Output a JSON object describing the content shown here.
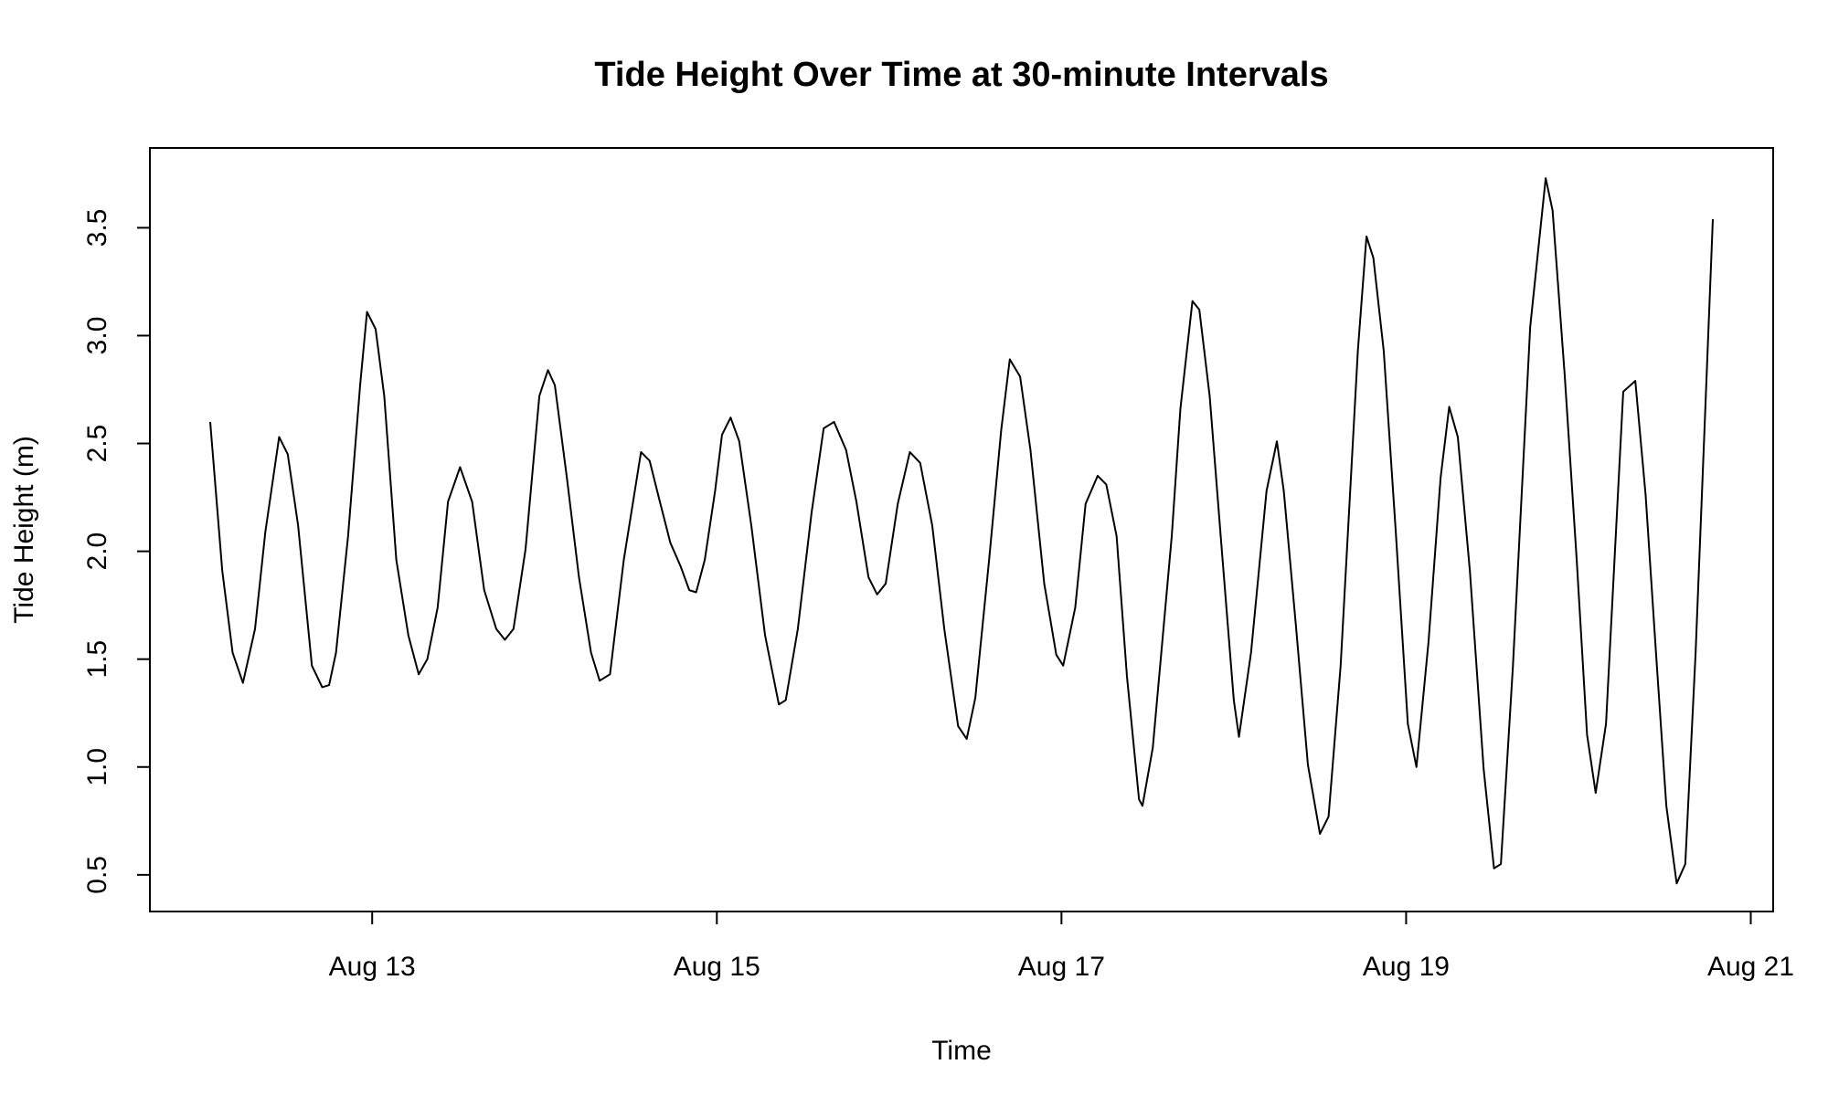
{
  "chart_data": {
    "type": "line",
    "title": "Tide Height Over Time at 30-minute Intervals",
    "x_label": "Time",
    "y_label": "Tide Height (m)",
    "color": "#000000",
    "grid": false,
    "x": [
      12.06,
      12.13,
      12.19,
      12.25,
      12.32,
      12.38,
      12.46,
      12.51,
      12.57,
      12.65,
      12.71,
      12.75,
      12.79,
      12.86,
      12.93,
      12.97,
      13.02,
      13.07,
      13.14,
      13.21,
      13.27,
      13.32,
      13.38,
      13.44,
      13.51,
      13.58,
      13.65,
      13.72,
      13.77,
      13.82,
      13.89,
      13.97,
      14.02,
      14.06,
      14.13,
      14.2,
      14.27,
      14.32,
      14.38,
      14.46,
      14.56,
      14.61,
      14.66,
      14.73,
      14.79,
      14.84,
      14.88,
      14.93,
      14.99,
      15.03,
      15.08,
      15.13,
      15.2,
      15.28,
      15.36,
      15.4,
      15.47,
      15.55,
      15.62,
      15.68,
      15.75,
      15.81,
      15.88,
      15.93,
      15.98,
      16.05,
      16.12,
      16.18,
      16.25,
      16.32,
      16.4,
      16.45,
      16.5,
      16.58,
      16.65,
      16.7,
      16.76,
      16.82,
      16.9,
      16.97,
      17.01,
      17.08,
      17.14,
      17.21,
      17.26,
      17.32,
      17.38,
      17.45,
      17.47,
      17.53,
      17.64,
      17.69,
      17.76,
      17.8,
      17.86,
      17.93,
      18.0,
      18.03,
      18.1,
      18.19,
      18.25,
      18.29,
      18.36,
      18.43,
      18.5,
      18.55,
      18.62,
      18.72,
      18.77,
      18.81,
      18.87,
      18.94,
      19.01,
      19.06,
      19.13,
      19.2,
      19.25,
      19.3,
      19.37,
      19.45,
      19.51,
      19.55,
      19.62,
      19.72,
      19.81,
      19.85,
      19.92,
      19.99,
      20.05,
      20.1,
      20.16,
      20.26,
      20.33,
      20.39,
      20.45,
      20.51,
      20.57,
      20.62,
      20.68,
      20.78
    ],
    "values": [
      2.6,
      1.91,
      1.53,
      1.39,
      1.64,
      2.09,
      2.53,
      2.45,
      2.12,
      1.47,
      1.37,
      1.38,
      1.53,
      2.07,
      2.77,
      3.11,
      3.03,
      2.72,
      1.96,
      1.61,
      1.43,
      1.5,
      1.74,
      2.23,
      2.39,
      2.23,
      1.82,
      1.64,
      1.59,
      1.64,
      2.01,
      2.72,
      2.84,
      2.77,
      2.34,
      1.88,
      1.53,
      1.4,
      1.43,
      1.96,
      2.46,
      2.42,
      2.26,
      2.04,
      1.93,
      1.82,
      1.81,
      1.96,
      2.28,
      2.54,
      2.62,
      2.51,
      2.12,
      1.61,
      1.29,
      1.31,
      1.64,
      2.18,
      2.57,
      2.6,
      2.47,
      2.23,
      1.88,
      1.8,
      1.85,
      2.22,
      2.46,
      2.41,
      2.12,
      1.64,
      1.19,
      1.13,
      1.32,
      1.96,
      2.56,
      2.89,
      2.81,
      2.47,
      1.85,
      1.52,
      1.47,
      1.74,
      2.22,
      2.35,
      2.31,
      2.07,
      1.42,
      0.85,
      0.82,
      1.09,
      2.07,
      2.66,
      3.16,
      3.12,
      2.72,
      2.01,
      1.31,
      1.14,
      1.53,
      2.28,
      2.51,
      2.28,
      1.66,
      1.01,
      0.69,
      0.77,
      1.47,
      2.93,
      3.46,
      3.36,
      2.93,
      2.09,
      1.2,
      1.0,
      1.58,
      2.34,
      2.67,
      2.53,
      1.91,
      0.99,
      0.53,
      0.55,
      1.47,
      3.04,
      3.73,
      3.58,
      2.82,
      1.96,
      1.15,
      0.88,
      1.2,
      2.74,
      2.79,
      2.26,
      1.53,
      0.82,
      0.46,
      0.55,
      1.53,
      3.54
    ],
    "xlim": [
      11.71,
      21.13
    ],
    "ylim": [
      0.33,
      3.87
    ],
    "xticks": [
      {
        "value": 13,
        "label": "Aug 13"
      },
      {
        "value": 15,
        "label": "Aug 15"
      },
      {
        "value": 17,
        "label": "Aug 17"
      },
      {
        "value": 19,
        "label": "Aug 19"
      },
      {
        "value": 21,
        "label": "Aug 21"
      }
    ],
    "yticks": [
      0.5,
      {
        "value": 1,
        "label": "1.0"
      },
      1.5,
      {
        "value": 2,
        "label": "2.0"
      },
      2.5,
      {
        "value": 3,
        "label": "3.0"
      },
      3.5
    ]
  }
}
